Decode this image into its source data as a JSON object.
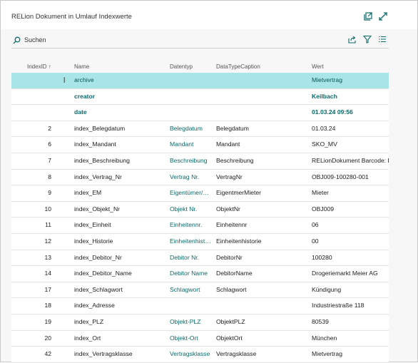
{
  "window": {
    "title": "RELion Dokument in Umlauf Indexwerte",
    "icons": [
      "open-in-new-window-icon",
      "expand-icon"
    ]
  },
  "toolbar": {
    "search_label": "Suchen",
    "icons": [
      "share-icon",
      "filter-icon",
      "list-view-icon"
    ]
  },
  "columns": {
    "indexid": "IndexID ↑",
    "name": "Name",
    "datentyp": "Datentyp",
    "datatypecaption": "DataTypeCaption",
    "wert": "Wert"
  },
  "rows": [
    {
      "id": "",
      "name": "archive",
      "datentyp": "",
      "caption": "",
      "wert": "Mietvertrag",
      "style": "sel",
      "dots": "⋮"
    },
    {
      "id": "",
      "name": "creator",
      "datentyp": "",
      "caption": "",
      "wert": "Keilbach",
      "style": "sub",
      "dots": ""
    },
    {
      "id": "",
      "name": "date",
      "datentyp": "",
      "caption": "",
      "wert": "01.03.24 09:56",
      "style": "sub",
      "dots": ""
    },
    {
      "id": "2",
      "name": "index_Belegdatum",
      "datentyp": "Belegdatum",
      "caption": "Belegdatum",
      "wert": "01.03.24",
      "style": "",
      "dots": ""
    },
    {
      "id": "6",
      "name": "index_Mandant",
      "datentyp": "Mandant",
      "caption": "Mandant",
      "wert": "SKO_MV",
      "style": "",
      "dots": ""
    },
    {
      "id": "7",
      "name": "index_Beschreibung",
      "datentyp": "Beschreibung",
      "caption": "Beschreibung",
      "wert": "RELionDokument Barcode: F",
      "style": "",
      "dots": ""
    },
    {
      "id": "8",
      "name": "index_Vertrag_Nr",
      "datentyp": "Vertrag Nr.",
      "caption": "VertragNr",
      "wert": "OBJ009-100280-001",
      "style": "",
      "dots": ""
    },
    {
      "id": "9",
      "name": "index_EM",
      "datentyp": "Eigentümer/…",
      "caption": "EigentmerMieter",
      "wert": "Mieter",
      "style": "",
      "dots": ""
    },
    {
      "id": "10",
      "name": "index_Objekt_Nr",
      "datentyp": "Objekt Nr.",
      "caption": "ObjektNr",
      "wert": "OBJ009",
      "style": "",
      "dots": ""
    },
    {
      "id": "11",
      "name": "index_Einheit",
      "datentyp": "Einheitennr.",
      "caption": "Einheitennr",
      "wert": "06",
      "style": "",
      "dots": ""
    },
    {
      "id": "12",
      "name": "index_Historie",
      "datentyp": "Einheitenhist…",
      "caption": "Einheitenhistorie",
      "wert": "00",
      "style": "",
      "dots": ""
    },
    {
      "id": "13",
      "name": "index_Debitor_Nr",
      "datentyp": "Debitor Nr.",
      "caption": "DebitorNr",
      "wert": "100280",
      "style": "",
      "dots": ""
    },
    {
      "id": "14",
      "name": "index_Debitor_Name",
      "datentyp": "Debitor Name",
      "caption": "DebitorName",
      "wert": "Drogeriemarkt Meier AG",
      "style": "",
      "dots": ""
    },
    {
      "id": "17",
      "name": "index_Schlagwort",
      "datentyp": "Schlagwort",
      "caption": "Schlagwort",
      "wert": "Kündigung",
      "style": "",
      "dots": ""
    },
    {
      "id": "18",
      "name": "index_Adresse",
      "datentyp": "",
      "caption": "",
      "wert": "Industriestraße 118",
      "style": "",
      "dots": ""
    },
    {
      "id": "19",
      "name": "index_PLZ",
      "datentyp": "Objekt-PLZ",
      "caption": "ObjektPLZ",
      "wert": "80539",
      "style": "",
      "dots": ""
    },
    {
      "id": "20",
      "name": "index_Ort",
      "datentyp": "Objekt-Ort",
      "caption": "ObjektOrt",
      "wert": "München",
      "style": "",
      "dots": ""
    },
    {
      "id": "42",
      "name": "index_Vertragsklasse",
      "datentyp": "Vertragsklasse",
      "caption": "Vertragsklasse",
      "wert": "Mietvertrag",
      "style": "",
      "dots": ""
    }
  ],
  "colors": {
    "accent": "#0b6a6a",
    "selected_row": "#a8e4e8"
  }
}
